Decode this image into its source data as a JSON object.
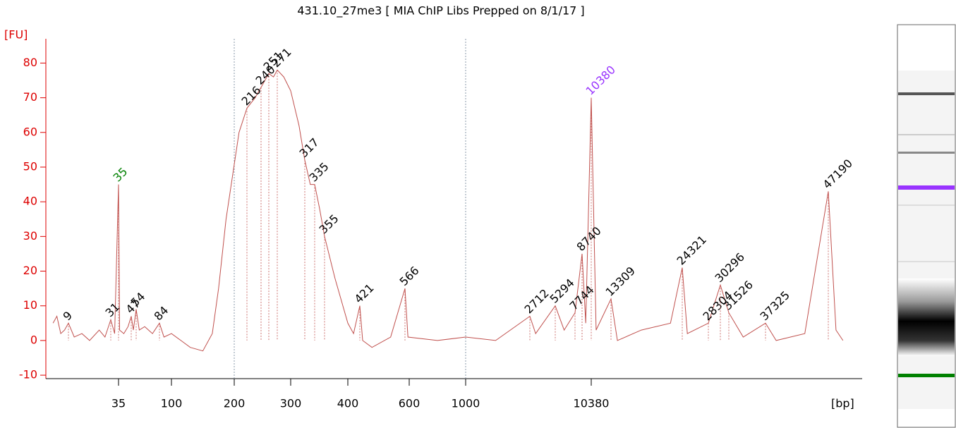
{
  "chart_data": {
    "type": "line",
    "title": "431.10_27me3  [ MIA ChIP Libs Prepped on 8/1/17 ]",
    "y_label": "[FU]",
    "x_label": "[bp]",
    "ylim": [
      -11,
      87
    ],
    "yticks": [
      -10,
      0,
      10,
      20,
      30,
      40,
      50,
      60,
      70,
      80
    ],
    "xticks": [
      35,
      100,
      200,
      300,
      400,
      600,
      1000,
      10380
    ],
    "markers": [
      200,
      1000
    ],
    "series": [
      {
        "name": "431.10_27me3",
        "color": "#c0504d",
        "x": [
          1,
          3,
          5,
          7,
          9,
          12,
          16,
          20,
          25,
          28,
          31,
          33,
          35,
          36,
          40,
          44,
          47,
          50,
          54,
          58,
          65,
          75,
          84,
          90,
          100,
          115,
          130,
          150,
          165,
          175,
          187,
          206,
          216,
          230,
          240,
          251,
          262,
          271,
          285,
          300,
          310,
          317,
          327,
          335,
          345,
          355,
          375,
          400,
          410,
          421,
          430,
          460,
          520,
          566,
          590,
          800,
          1000,
          1800,
          2712,
          3300,
          5294,
          6400,
          7744,
          8740,
          9400,
          10380,
          11100,
          13309,
          14300,
          18000,
          22500,
          24321,
          25100,
          28304,
          30296,
          31526,
          33800,
          37325,
          39000,
          43500,
          47190,
          48400,
          49500
        ],
        "values": [
          5,
          7,
          2,
          3,
          5,
          1,
          2,
          0,
          3,
          1,
          6,
          2,
          45,
          3,
          2,
          4,
          7,
          3,
          9,
          3,
          4,
          2,
          5,
          1,
          2,
          0,
          -2,
          -3,
          2,
          15,
          35,
          60,
          67,
          70,
          73,
          77,
          76,
          78,
          76,
          72,
          62,
          52,
          45,
          45,
          38,
          30,
          18,
          5,
          2,
          10,
          0,
          -2,
          1,
          15,
          1,
          0,
          1,
          0,
          7,
          2,
          10,
          3,
          8,
          25,
          5,
          70,
          3,
          12,
          0,
          3,
          5,
          21,
          2,
          5,
          16,
          8,
          1,
          5,
          0,
          2,
          43,
          3,
          0
        ]
      }
    ],
    "peaks": {
      "x": [
        9,
        31,
        35,
        47,
        54,
        84,
        216,
        240,
        251,
        271,
        317,
        335,
        355,
        421,
        566,
        2712,
        5294,
        7744,
        8740,
        10380,
        13309,
        24321,
        28304,
        30296,
        31526,
        37325,
        47190
      ],
      "values": [
        5,
        6,
        45,
        7,
        9,
        5,
        67,
        73,
        77,
        78,
        52,
        45,
        30,
        10,
        15,
        7,
        10,
        8,
        25,
        70,
        12,
        21,
        5,
        16,
        8,
        5,
        43
      ],
      "colors": [
        "#000",
        "#000",
        "#008000",
        "#000",
        "#000",
        "#000",
        "#000",
        "#000",
        "#000",
        "#000",
        "#000",
        "#000",
        "#000",
        "#000",
        "#000",
        "#000",
        "#000",
        "#000",
        "#000",
        "#9933ff",
        "#000",
        "#000",
        "#000",
        "#000",
        "#000",
        "#000",
        "#000"
      ]
    }
  }
}
